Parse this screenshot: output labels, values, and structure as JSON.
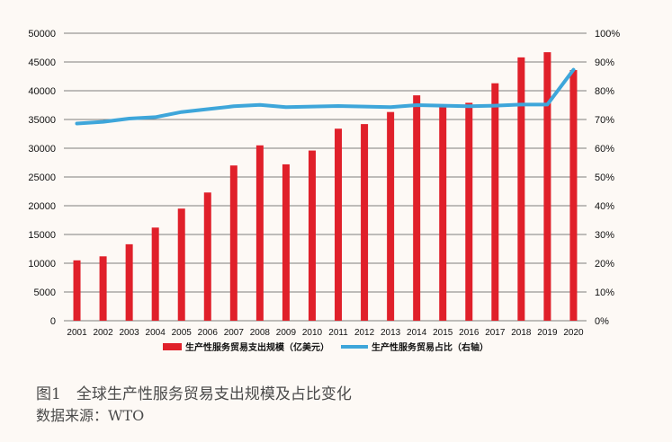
{
  "chart_data": {
    "type": "bar",
    "categories": [
      "2001",
      "2002",
      "2003",
      "2004",
      "2005",
      "2006",
      "2007",
      "2008",
      "2009",
      "2010",
      "2011",
      "2012",
      "2013",
      "2014",
      "2015",
      "2016",
      "2017",
      "2018",
      "2019",
      "2020"
    ],
    "series": [
      {
        "name": "生产性服务贸易支出规模（亿美元）",
        "type": "bar",
        "axis": "left",
        "color": "#e0202a",
        "values": [
          10500,
          11200,
          13300,
          16200,
          19500,
          22300,
          27000,
          30500,
          27200,
          29600,
          33400,
          34200,
          36300,
          39200,
          37200,
          37900,
          41300,
          45800,
          46700,
          43600
        ]
      },
      {
        "name": "生产性服务贸易占比（右轴）",
        "type": "line",
        "axis": "right",
        "color": "#3ea6da",
        "values": [
          68.6,
          69.2,
          70.3,
          70.8,
          72.6,
          73.6,
          74.6,
          75.1,
          74.3,
          74.5,
          74.7,
          74.5,
          74.3,
          75.0,
          74.8,
          74.6,
          74.8,
          75.2,
          75.2,
          87.3
        ]
      }
    ],
    "y_left": {
      "range": [
        0,
        50000
      ],
      "ticks": [
        "0",
        "5000",
        "10000",
        "15000",
        "20000",
        "25000",
        "30000",
        "35000",
        "40000",
        "45000",
        "50000"
      ]
    },
    "y_right": {
      "range": [
        0,
        100
      ],
      "ticks": [
        "0%",
        "10%",
        "20%",
        "30%",
        "40%",
        "50%",
        "60%",
        "70%",
        "80%",
        "90%",
        "100%"
      ]
    },
    "grid": true,
    "legend_position": "bottom-center",
    "colors": {
      "bar": "#e0202a",
      "line": "#3ea6da",
      "grid": "#555555",
      "background": "#fdf9f5"
    }
  },
  "caption": {
    "title": "图1　全球生产性服务贸易支出规模及占比变化",
    "source": "数据来源：WTO"
  }
}
